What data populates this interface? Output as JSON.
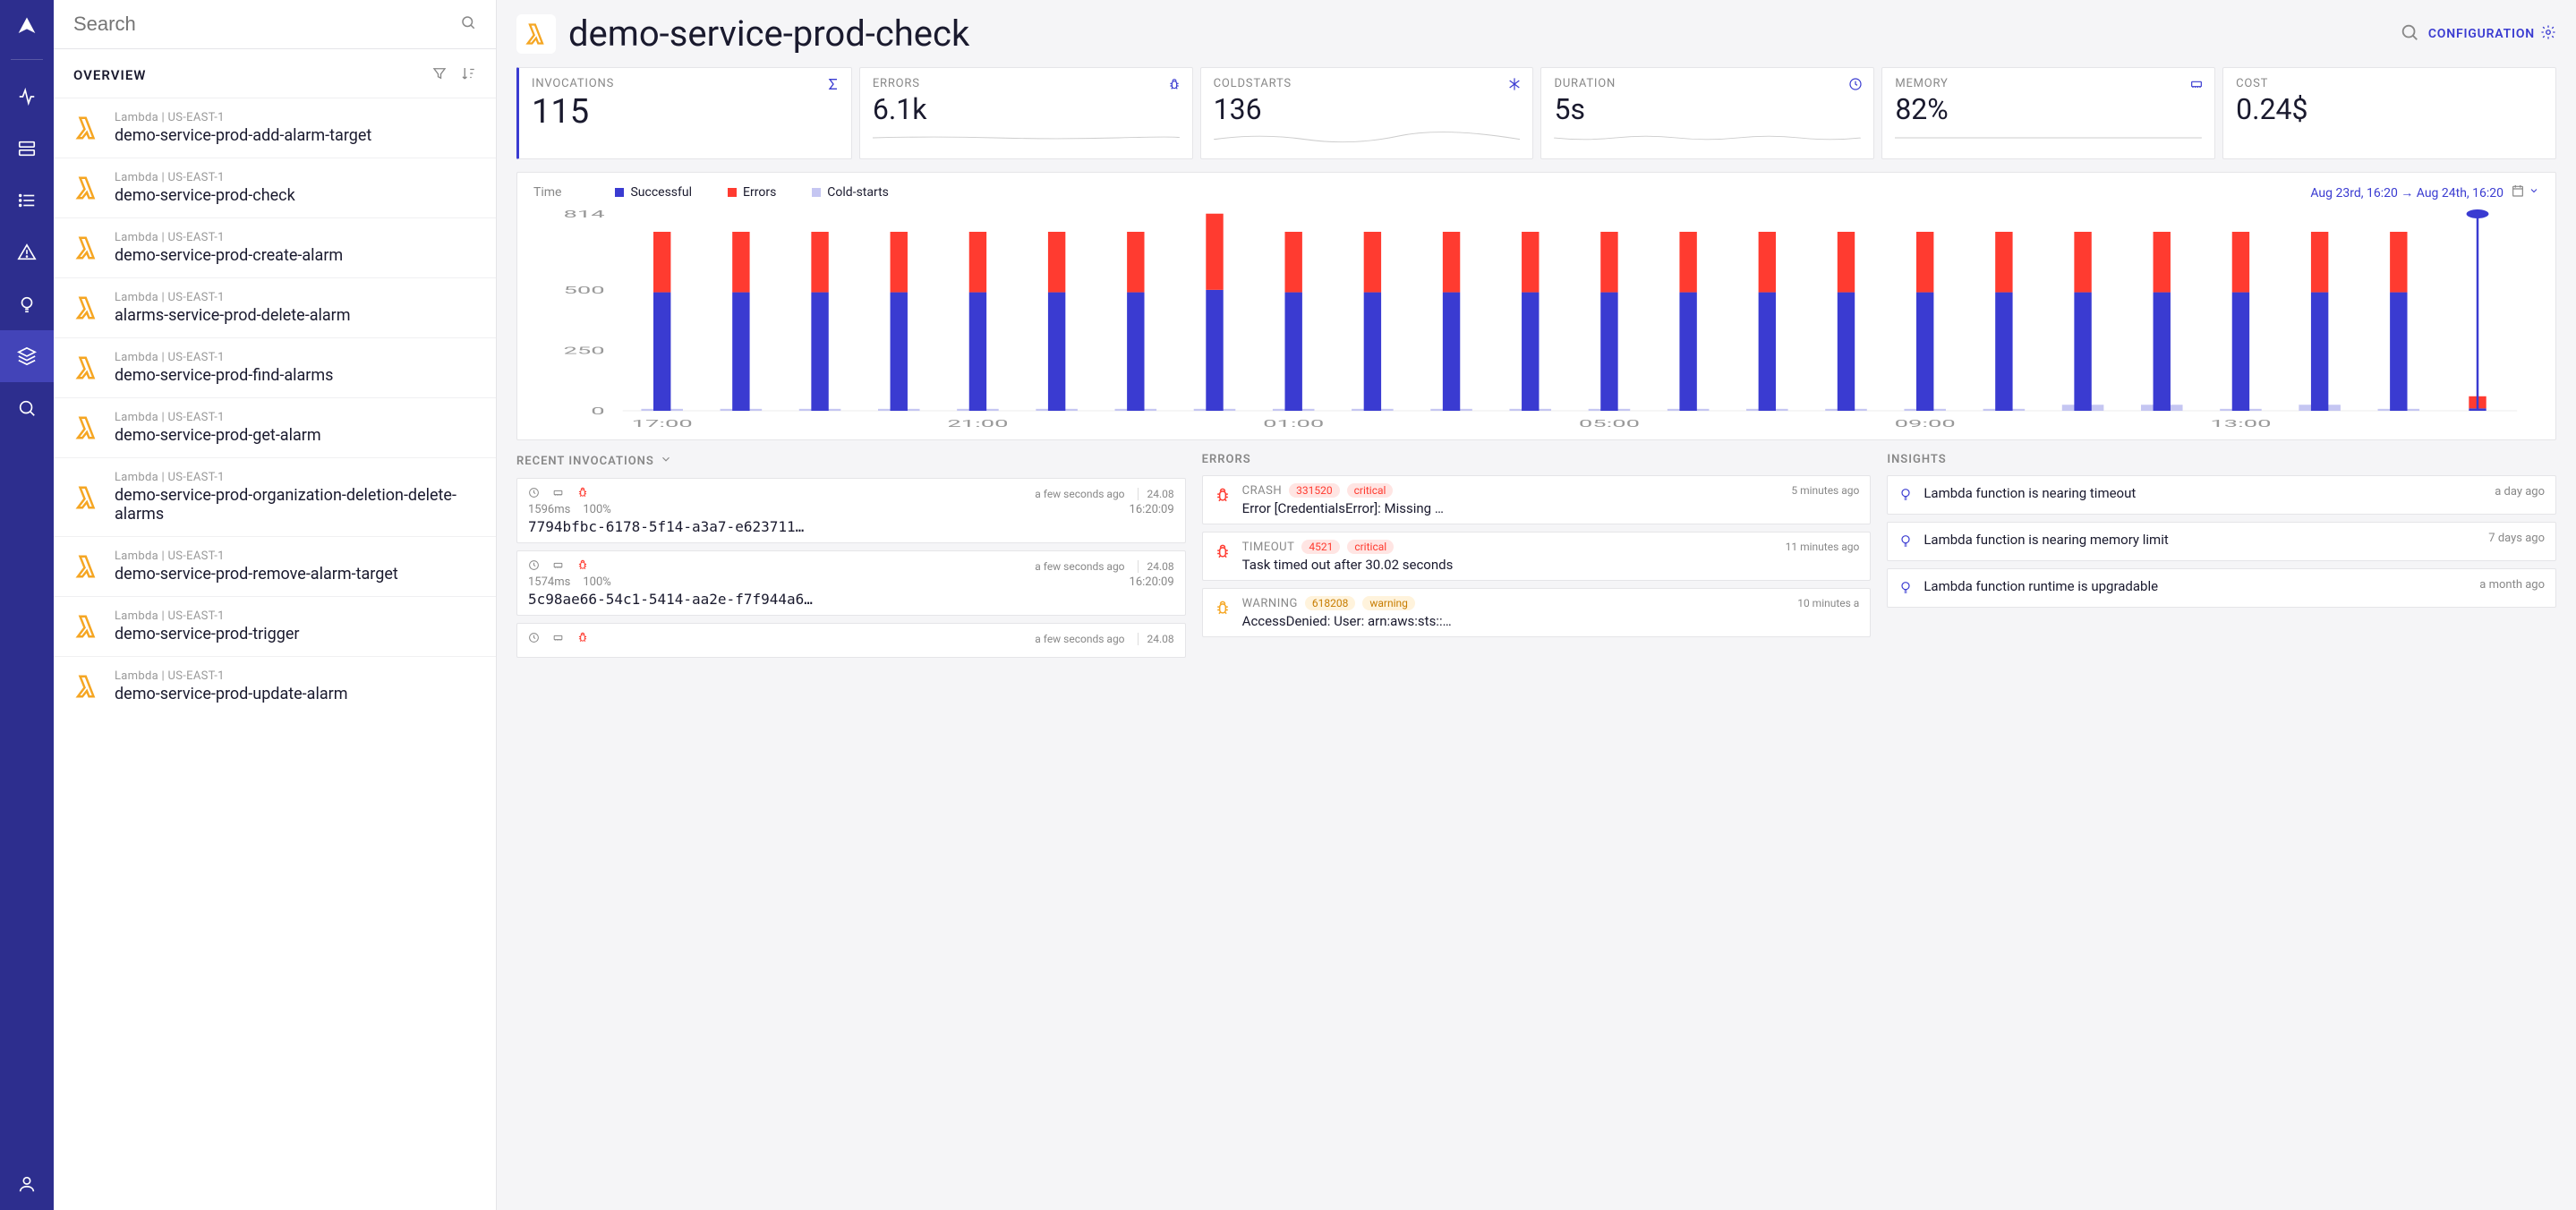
{
  "search": {
    "placeholder": "Search"
  },
  "sidebar": {
    "overview_label": "OVERVIEW",
    "items": [
      {
        "meta": "Lambda | US-EAST-1",
        "name": "demo-service-prod-add-alarm-target"
      },
      {
        "meta": "Lambda | US-EAST-1",
        "name": "demo-service-prod-check"
      },
      {
        "meta": "Lambda | US-EAST-1",
        "name": "demo-service-prod-create-alarm"
      },
      {
        "meta": "Lambda | US-EAST-1",
        "name": "alarms-service-prod-delete-alarm"
      },
      {
        "meta": "Lambda | US-EAST-1",
        "name": "demo-service-prod-find-alarms"
      },
      {
        "meta": "Lambda | US-EAST-1",
        "name": "demo-service-prod-get-alarm"
      },
      {
        "meta": "Lambda | US-EAST-1",
        "name": "demo-service-prod-organization-deletion-delete-alarms"
      },
      {
        "meta": "Lambda | US-EAST-1",
        "name": "demo-service-prod-remove-alarm-target"
      },
      {
        "meta": "Lambda | US-EAST-1",
        "name": "demo-service-prod-trigger"
      },
      {
        "meta": "Lambda | US-EAST-1",
        "name": "demo-service-prod-update-alarm"
      }
    ]
  },
  "page": {
    "title": "demo-service-prod-check",
    "configuration_label": "CONFIGURATION"
  },
  "stats": {
    "invocations": {
      "label": "INVOCATIONS",
      "value": "115"
    },
    "errors": {
      "label": "ERRORS",
      "value": "6.1k"
    },
    "coldstarts": {
      "label": "COLDSTARTS",
      "value": "136"
    },
    "duration": {
      "label": "DURATION",
      "value": "5s"
    },
    "memory": {
      "label": "MEMORY",
      "value": "82%"
    },
    "cost": {
      "label": "COST",
      "value": "0.24$"
    }
  },
  "chart": {
    "time_label": "Time",
    "legend": {
      "successful": "Successful",
      "errors": "Errors",
      "coldstarts": "Cold-starts"
    },
    "date_range": "Aug 23rd, 16:20 → Aug 24th, 16:20",
    "ylim": [
      0,
      814
    ],
    "yticks": [
      0,
      250,
      500,
      814
    ],
    "xlabels": [
      "17:00",
      "21:00",
      "01:00",
      "05:00",
      "09:00",
      "13:00"
    ],
    "xlabel_indices": [
      0,
      4,
      8,
      12,
      16,
      20
    ],
    "colors": {
      "successful": "#3a3bd1",
      "errors": "#ff3b30",
      "coldstarts": "#c5c6f2",
      "grid": "#eeeeee",
      "axis_text": "#999999",
      "marker": "#3a3bd1"
    },
    "bar_width_ratio": 0.22,
    "bars": [
      {
        "s": 490,
        "e": 250,
        "c": 8
      },
      {
        "s": 490,
        "e": 250,
        "c": 8
      },
      {
        "s": 490,
        "e": 250,
        "c": 8
      },
      {
        "s": 490,
        "e": 250,
        "c": 8
      },
      {
        "s": 490,
        "e": 250,
        "c": 8
      },
      {
        "s": 490,
        "e": 250,
        "c": 8
      },
      {
        "s": 490,
        "e": 250,
        "c": 8
      },
      {
        "s": 500,
        "e": 315,
        "c": 8
      },
      {
        "s": 490,
        "e": 250,
        "c": 8
      },
      {
        "s": 490,
        "e": 250,
        "c": 8
      },
      {
        "s": 490,
        "e": 250,
        "c": 8
      },
      {
        "s": 490,
        "e": 250,
        "c": 8
      },
      {
        "s": 490,
        "e": 250,
        "c": 8
      },
      {
        "s": 490,
        "e": 250,
        "c": 8
      },
      {
        "s": 490,
        "e": 250,
        "c": 8
      },
      {
        "s": 490,
        "e": 250,
        "c": 8
      },
      {
        "s": 490,
        "e": 250,
        "c": 8
      },
      {
        "s": 490,
        "e": 250,
        "c": 8
      },
      {
        "s": 490,
        "e": 250,
        "c": 25
      },
      {
        "s": 490,
        "e": 250,
        "c": 25
      },
      {
        "s": 490,
        "e": 250,
        "c": 8
      },
      {
        "s": 490,
        "e": 250,
        "c": 25
      },
      {
        "s": 490,
        "e": 250,
        "c": 8
      },
      {
        "s": 10,
        "e": 50,
        "c": 0,
        "marker": 814
      }
    ]
  },
  "panels": {
    "recent_invocations": {
      "title": "RECENT INVOCATIONS",
      "items": [
        {
          "duration_ms": "1596ms",
          "memory_pct": "100%",
          "ago": "a few seconds ago",
          "date": "24.08",
          "time": "16:20:09",
          "id": "7794bfbc-6178-5f14-a3a7-e623711…"
        },
        {
          "duration_ms": "1574ms",
          "memory_pct": "100%",
          "ago": "a few seconds ago",
          "date": "24.08",
          "time": "16:20:09",
          "id": "5c98ae66-54c1-5414-aa2e-f7f944a6…"
        },
        {
          "duration_ms": "",
          "memory_pct": "",
          "ago": "a few seconds ago",
          "date": "24.08",
          "time": "",
          "id": ""
        }
      ]
    },
    "errors": {
      "title": "ERRORS",
      "items": [
        {
          "type": "CRASH",
          "count": "331520",
          "severity": "critical",
          "ago": "5 minutes ago",
          "message": "Error [CredentialsError]: Missing …"
        },
        {
          "type": "TIMEOUT",
          "count": "4521",
          "severity": "critical",
          "ago": "11 minutes ago",
          "message": "Task timed out after 30.02 seconds"
        },
        {
          "type": "WARNING",
          "count": "618208",
          "severity": "warning",
          "ago": "10 minutes a",
          "message": "AccessDenied: User: arn:aws:sts::…"
        }
      ]
    },
    "insights": {
      "title": "INSIGHTS",
      "items": [
        {
          "message": "Lambda function is nearing timeout",
          "ago": "a day ago"
        },
        {
          "message": "Lambda function is nearing memory limit",
          "ago": "7 days ago"
        },
        {
          "message": "Lambda function runtime is upgradable",
          "ago": "a month ago"
        }
      ]
    }
  }
}
